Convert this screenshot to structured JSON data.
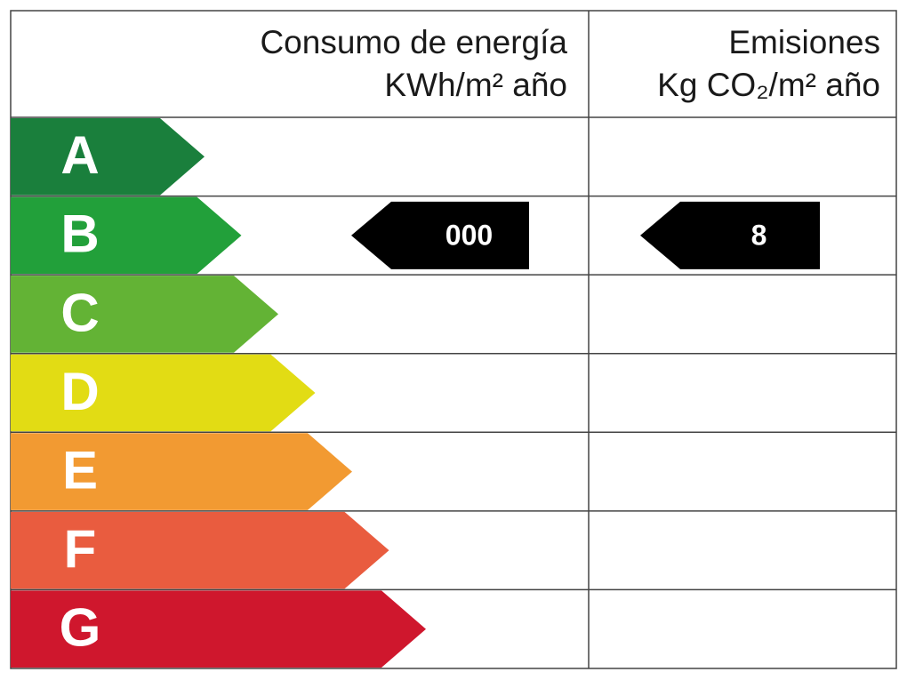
{
  "header": {
    "energy": [
      "Consumo de energía",
      "KWh/m² año"
    ],
    "emissions": [
      "Emisiones",
      "Kg CO₂/m² año"
    ]
  },
  "ratings": [
    {
      "letter": "A",
      "color": "#1a7f3c"
    },
    {
      "letter": "B",
      "color": "#22a03a"
    },
    {
      "letter": "C",
      "color": "#63b335"
    },
    {
      "letter": "D",
      "color": "#e2dc14"
    },
    {
      "letter": "E",
      "color": "#f29a32"
    },
    {
      "letter": "F",
      "color": "#e95c3f"
    },
    {
      "letter": "G",
      "color": "#cf172d"
    }
  ],
  "energy_indicator": {
    "rating": "B",
    "label": "000"
  },
  "emissions_indicator": {
    "rating": "B",
    "label": "8"
  }
}
